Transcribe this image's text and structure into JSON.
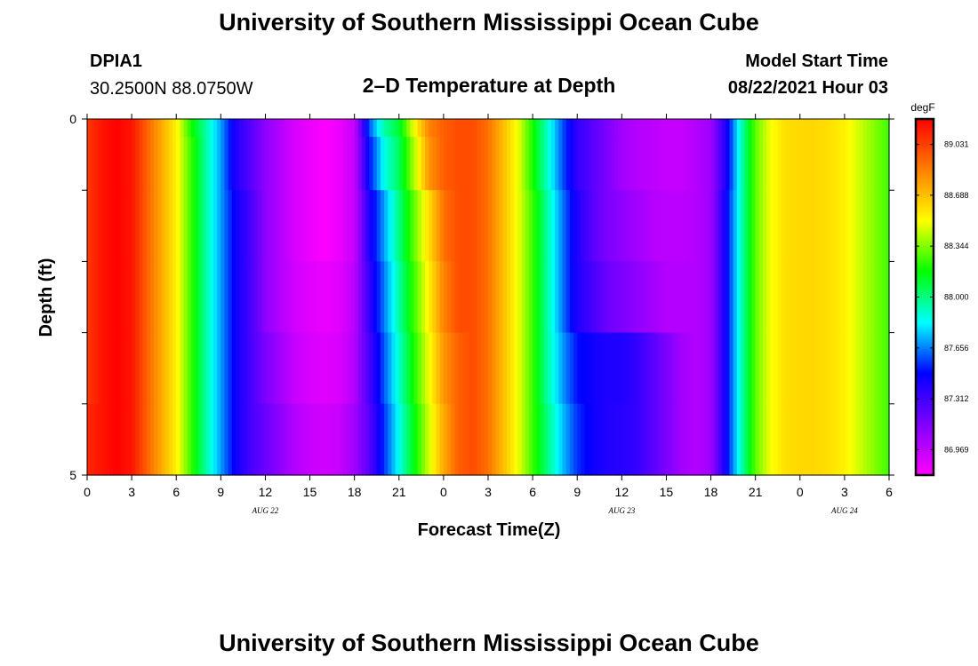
{
  "header": {
    "title": "University of Southern Mississippi Ocean Cube",
    "station_id": "DPIA1",
    "station_coords": "30.2500N  88.0750W",
    "subtitle": "2–D Temperature at Depth",
    "model_label": "Model Start Time",
    "model_time": "08/22/2021 Hour 03"
  },
  "footer": {
    "title": "University of Southern Mississippi Ocean Cube"
  },
  "chart_data": {
    "type": "heatmap",
    "xlabel": "Forecast Time(Z)",
    "ylabel": "Depth (ft)",
    "x_range_hours": [
      0,
      54
    ],
    "y_range": [
      0,
      5
    ],
    "y_inverted": true,
    "x_tick_labels": [
      "0",
      "3",
      "6",
      "9",
      "12",
      "15",
      "18",
      "21",
      "0",
      "3",
      "6",
      "9",
      "12",
      "15",
      "18",
      "21",
      "0",
      "3",
      "6"
    ],
    "y_tick_labels": [
      "0",
      "5"
    ],
    "date_labels": [
      {
        "text": "AUG  22",
        "hour": 12
      },
      {
        "text": "AUG  23",
        "hour": 36
      },
      {
        "text": "AUG  24",
        "hour": 51
      }
    ],
    "colorbar": {
      "unit": "degF",
      "min": 86.797,
      "max": 89.203,
      "labels": [
        "89.031",
        "88.688",
        "88.344",
        "88.000",
        "87.656",
        "87.312",
        "86.969"
      ],
      "colors": [
        "#ff00ff",
        "#8000ff",
        "#0000ff",
        "#00ffff",
        "#00ff00",
        "#ffff00",
        "#ff8000",
        "#ff0000"
      ]
    },
    "depth_rows": [
      0.0,
      0.5,
      1.5,
      2.5,
      3.5,
      4.5
    ],
    "time_hours": [
      0,
      1,
      2,
      3,
      4,
      5,
      6,
      7,
      8,
      9,
      10,
      11,
      12,
      13,
      14,
      15,
      16,
      17,
      18,
      19,
      20,
      21,
      22,
      23,
      24,
      25,
      26,
      27,
      28,
      29,
      30,
      31,
      32,
      33,
      34,
      35,
      36,
      37,
      38,
      39,
      40,
      41,
      42,
      43,
      44,
      45,
      46,
      47,
      48,
      49,
      50,
      51,
      52,
      53,
      54
    ],
    "values": [
      [
        89.05,
        89.15,
        89.2,
        89.15,
        88.95,
        88.75,
        88.55,
        88.2,
        87.95,
        87.7,
        87.4,
        87.25,
        87.1,
        87.0,
        86.9,
        86.85,
        86.8,
        86.85,
        86.95,
        87.6,
        87.95,
        88.1,
        88.5,
        88.85,
        88.95,
        89.0,
        89.0,
        88.9,
        88.7,
        88.5,
        88.2,
        87.9,
        87.6,
        87.35,
        87.25,
        87.15,
        87.05,
        87.0,
        86.98,
        86.95,
        86.95,
        87.0,
        87.05,
        87.4,
        87.9,
        88.3,
        88.5,
        88.6,
        88.62,
        88.62,
        88.6,
        88.55,
        88.45,
        88.35,
        88.25
      ],
      [
        89.05,
        89.15,
        89.2,
        89.15,
        88.95,
        88.75,
        88.55,
        88.25,
        87.95,
        87.7,
        87.4,
        87.25,
        87.1,
        87.0,
        86.9,
        86.85,
        86.8,
        86.85,
        86.95,
        87.5,
        87.85,
        88.05,
        88.4,
        88.8,
        88.95,
        89.0,
        89.0,
        88.9,
        88.7,
        88.5,
        88.2,
        87.9,
        87.6,
        87.35,
        87.25,
        87.15,
        87.05,
        87.0,
        86.98,
        86.95,
        86.95,
        87.0,
        87.05,
        87.4,
        87.9,
        88.3,
        88.5,
        88.6,
        88.62,
        88.62,
        88.6,
        88.55,
        88.45,
        88.35,
        88.25
      ],
      [
        89.05,
        89.15,
        89.2,
        89.15,
        88.95,
        88.75,
        88.55,
        88.25,
        87.95,
        87.7,
        87.45,
        87.3,
        87.1,
        87.0,
        86.9,
        86.85,
        86.8,
        86.85,
        86.95,
        87.4,
        87.7,
        88.0,
        88.3,
        88.6,
        88.9,
        89.0,
        89.0,
        88.9,
        88.7,
        88.5,
        88.25,
        87.95,
        87.65,
        87.4,
        87.25,
        87.15,
        87.1,
        87.05,
        87.0,
        86.98,
        86.98,
        87.0,
        87.05,
        87.45,
        87.9,
        88.3,
        88.5,
        88.6,
        88.62,
        88.62,
        88.6,
        88.55,
        88.45,
        88.35,
        88.25
      ],
      [
        89.05,
        89.15,
        89.2,
        89.15,
        88.95,
        88.75,
        88.55,
        88.25,
        87.95,
        87.7,
        87.45,
        87.3,
        87.1,
        87.0,
        86.92,
        86.88,
        86.85,
        86.88,
        86.98,
        87.35,
        87.65,
        87.95,
        88.25,
        88.55,
        88.85,
        89.0,
        89.0,
        88.9,
        88.7,
        88.5,
        88.25,
        87.95,
        87.65,
        87.4,
        87.3,
        87.2,
        87.15,
        87.1,
        87.05,
        87.0,
        87.0,
        87.0,
        87.05,
        87.45,
        87.9,
        88.3,
        88.5,
        88.6,
        88.62,
        88.62,
        88.6,
        88.55,
        88.45,
        88.35,
        88.25
      ],
      [
        89.05,
        89.15,
        89.2,
        89.15,
        88.95,
        88.75,
        88.55,
        88.25,
        87.95,
        87.7,
        87.45,
        87.3,
        87.15,
        87.05,
        86.95,
        86.9,
        86.88,
        86.9,
        87.0,
        87.3,
        87.6,
        87.9,
        88.2,
        88.5,
        88.8,
        88.95,
        89.0,
        88.9,
        88.7,
        88.5,
        88.25,
        87.95,
        87.7,
        87.5,
        87.45,
        87.4,
        87.4,
        87.35,
        87.25,
        87.15,
        87.05,
        87.0,
        87.05,
        87.45,
        87.9,
        88.3,
        88.5,
        88.6,
        88.62,
        88.62,
        88.6,
        88.55,
        88.45,
        88.35,
        88.25
      ],
      [
        89.1,
        89.15,
        89.2,
        89.15,
        88.95,
        88.75,
        88.55,
        88.25,
        87.95,
        87.7,
        87.45,
        87.3,
        87.2,
        87.1,
        87.0,
        86.95,
        86.92,
        86.95,
        87.05,
        87.25,
        87.55,
        87.85,
        88.15,
        88.45,
        88.75,
        88.95,
        89.0,
        88.9,
        88.7,
        88.5,
        88.25,
        88.0,
        87.75,
        87.55,
        87.45,
        87.4,
        87.38,
        87.35,
        87.25,
        87.15,
        87.05,
        87.0,
        87.05,
        87.45,
        87.9,
        88.3,
        88.5,
        88.6,
        88.62,
        88.62,
        88.6,
        88.55,
        88.45,
        88.35,
        88.25
      ]
    ]
  }
}
